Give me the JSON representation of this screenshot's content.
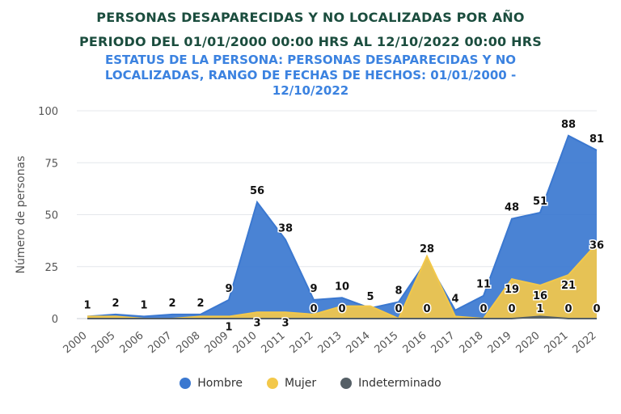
{
  "colors": {
    "title": "#1b4d3e",
    "subtitle": "#3b82e0",
    "hombre": "#3b78d0",
    "mujer": "#f3c84a",
    "indeterminado": "#555f66"
  },
  "chart_data": {
    "type": "area",
    "title": "PERSONAS DESAPARECIDAS Y NO LOCALIZADAS POR AÑO",
    "subtitle": "PERIODO DEL 01/01/2000 00:00 HRS AL 12/10/2022 00:00 HRS",
    "status_lines": [
      "ESTATUS DE LA PERSONA: PERSONAS DESAPARECIDAS Y NO",
      "LOCALIZADAS, RANGO DE FECHAS DE HECHOS: 01/01/2000 -",
      "12/10/2022"
    ],
    "ylabel": "Número de personas",
    "xlabel": "",
    "ylim": [
      0,
      100
    ],
    "yticks": [
      0,
      25,
      50,
      75,
      100
    ],
    "grid": true,
    "legend_position": "bottom",
    "categories": [
      "2000",
      "2005",
      "2006",
      "2007",
      "2008",
      "2009",
      "2010",
      "2011",
      "2012",
      "2013",
      "2014",
      "2015",
      "2016",
      "2017",
      "2018",
      "2019",
      "2020",
      "2021",
      "2022"
    ],
    "series": [
      {
        "name": "Hombre",
        "values": [
          1,
          2,
          1,
          2,
          2,
          9,
          56,
          38,
          9,
          10,
          5,
          8,
          28,
          4,
          11,
          48,
          51,
          88,
          81
        ]
      },
      {
        "name": "Mujer",
        "values": [
          1,
          1,
          0,
          0,
          1,
          1,
          3,
          3,
          2,
          6,
          6,
          0,
          30,
          1,
          0,
          19,
          16,
          21,
          36
        ]
      },
      {
        "name": "Indeterminado",
        "values": [
          0,
          0,
          0,
          0,
          0,
          0,
          0,
          0,
          0,
          0,
          0,
          0,
          0,
          0,
          0,
          0,
          1,
          0,
          0
        ]
      }
    ],
    "data_labels": [
      "1",
      "2",
      "1",
      "2",
      "2",
      "9",
      "56",
      "38",
      "9",
      "10",
      "5",
      "8",
      "28",
      "4",
      "11",
      "48",
      "51",
      "88",
      "81"
    ],
    "inner_labels": [
      {
        "index": 5,
        "value": "1"
      },
      {
        "index": 6,
        "value": "3"
      },
      {
        "index": 7,
        "value": "3"
      },
      {
        "index": 8,
        "value": "0"
      },
      {
        "index": 9,
        "value": "0"
      },
      {
        "index": 11,
        "value": "0"
      },
      {
        "index": 12,
        "value": "0"
      },
      {
        "index": 14,
        "value": "0"
      },
      {
        "index": 15,
        "value": "19"
      },
      {
        "index": 15,
        "value": "0"
      },
      {
        "index": 16,
        "value": "16"
      },
      {
        "index": 16,
        "value": "1"
      },
      {
        "index": 17,
        "value": "21"
      },
      {
        "index": 17,
        "value": "0"
      },
      {
        "index": 18,
        "value": "36"
      },
      {
        "index": 18,
        "value": "0"
      }
    ],
    "legend": [
      "Hombre",
      "Mujer",
      "Indeterminado"
    ]
  }
}
